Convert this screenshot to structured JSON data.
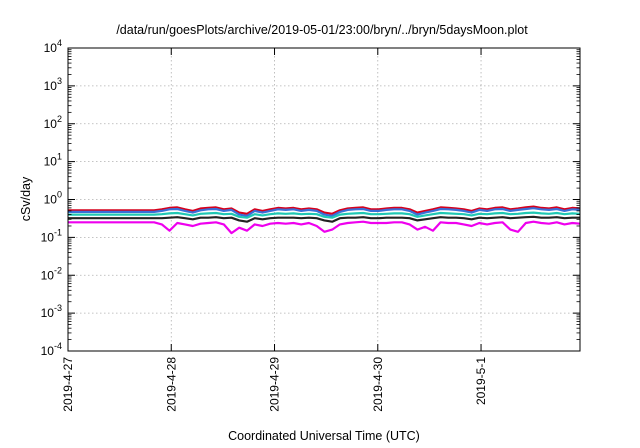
{
  "chart_data": {
    "type": "line",
    "title": "/data/run/goesPlots/archive/2019-05-01/23:00/bryn/../bryn/5daysMoon.plot",
    "xlabel": "Coordinated Universal Time (UTC)",
    "ylabel": "cSv/day",
    "yscale": "log",
    "ylim": [
      0.0001,
      10000
    ],
    "y_ticks": [
      {
        "exp": "-4",
        "value": 0.0001
      },
      {
        "exp": "-3",
        "value": 0.001
      },
      {
        "exp": "-2",
        "value": 0.01
      },
      {
        "exp": "-1",
        "value": 0.1
      },
      {
        "exp": "0",
        "value": 1
      },
      {
        "exp": "1",
        "value": 10
      },
      {
        "exp": "2",
        "value": 100
      },
      {
        "exp": "3",
        "value": 1000
      },
      {
        "exp": "4",
        "value": 10000
      }
    ],
    "y_tick_base": "10",
    "xlim": [
      "2019-04-27",
      "2019-05-01T23:00"
    ],
    "x_ticks": [
      "2019-4-27",
      "2019-4-28",
      "2019-4-29",
      "2019-4-30",
      "2019-5-1"
    ],
    "grid": true,
    "legend": "none",
    "series": [
      {
        "color": "#d6001c",
        "flat_value": 0.52,
        "values": [
          0.52,
          0.55,
          0.6,
          0.62,
          0.55,
          0.5,
          0.58,
          0.6,
          0.62,
          0.55,
          0.58,
          0.45,
          0.42,
          0.55,
          0.5,
          0.55,
          0.6,
          0.58,
          0.6,
          0.55,
          0.58,
          0.55,
          0.45,
          0.42,
          0.52,
          0.58,
          0.6,
          0.62,
          0.55,
          0.55,
          0.58,
          0.6,
          0.6,
          0.55,
          0.45,
          0.5,
          0.55,
          0.62,
          0.6,
          0.58,
          0.55,
          0.5,
          0.58,
          0.55,
          0.6,
          0.62,
          0.55,
          0.58,
          0.62,
          0.65,
          0.6,
          0.58,
          0.62,
          0.55,
          0.6,
          0.58
        ]
      },
      {
        "color": "#3a6fd8",
        "flat_value": 0.47,
        "values": [
          0.47,
          0.5,
          0.55,
          0.56,
          0.5,
          0.45,
          0.52,
          0.55,
          0.56,
          0.5,
          0.53,
          0.4,
          0.37,
          0.5,
          0.45,
          0.5,
          0.55,
          0.53,
          0.55,
          0.5,
          0.53,
          0.5,
          0.4,
          0.37,
          0.47,
          0.53,
          0.55,
          0.56,
          0.5,
          0.5,
          0.53,
          0.55,
          0.55,
          0.5,
          0.4,
          0.45,
          0.5,
          0.56,
          0.55,
          0.53,
          0.5,
          0.45,
          0.53,
          0.5,
          0.55,
          0.56,
          0.5,
          0.53,
          0.56,
          0.59,
          0.55,
          0.53,
          0.56,
          0.5,
          0.55,
          0.53
        ]
      },
      {
        "color": "#20c8b4",
        "flat_value": 0.4,
        "values": [
          0.4,
          0.41,
          0.43,
          0.44,
          0.41,
          0.38,
          0.42,
          0.43,
          0.44,
          0.41,
          0.42,
          0.35,
          0.33,
          0.41,
          0.38,
          0.41,
          0.43,
          0.42,
          0.43,
          0.41,
          0.42,
          0.41,
          0.35,
          0.33,
          0.4,
          0.42,
          0.43,
          0.44,
          0.41,
          0.41,
          0.42,
          0.43,
          0.43,
          0.41,
          0.35,
          0.38,
          0.41,
          0.44,
          0.43,
          0.42,
          0.41,
          0.38,
          0.42,
          0.41,
          0.43,
          0.44,
          0.41,
          0.42,
          0.44,
          0.45,
          0.43,
          0.42,
          0.44,
          0.41,
          0.43,
          0.42
        ]
      },
      {
        "color": "#222222",
        "flat_value": 0.32,
        "values": [
          0.32,
          0.32,
          0.33,
          0.34,
          0.32,
          0.3,
          0.33,
          0.33,
          0.34,
          0.32,
          0.33,
          0.28,
          0.26,
          0.32,
          0.3,
          0.32,
          0.33,
          0.33,
          0.33,
          0.32,
          0.33,
          0.32,
          0.28,
          0.26,
          0.32,
          0.33,
          0.33,
          0.34,
          0.32,
          0.32,
          0.33,
          0.33,
          0.33,
          0.32,
          0.28,
          0.3,
          0.32,
          0.34,
          0.33,
          0.33,
          0.32,
          0.3,
          0.33,
          0.32,
          0.33,
          0.34,
          0.32,
          0.33,
          0.34,
          0.35,
          0.33,
          0.33,
          0.34,
          0.32,
          0.33,
          0.33
        ]
      },
      {
        "color": "#ee00ee",
        "flat_value": 0.25,
        "values": [
          0.25,
          0.22,
          0.15,
          0.24,
          0.22,
          0.2,
          0.23,
          0.24,
          0.25,
          0.22,
          0.13,
          0.18,
          0.15,
          0.22,
          0.2,
          0.23,
          0.24,
          0.23,
          0.24,
          0.22,
          0.24,
          0.2,
          0.14,
          0.16,
          0.22,
          0.24,
          0.25,
          0.26,
          0.24,
          0.24,
          0.24,
          0.25,
          0.25,
          0.22,
          0.16,
          0.19,
          0.15,
          0.25,
          0.24,
          0.24,
          0.22,
          0.2,
          0.24,
          0.22,
          0.24,
          0.25,
          0.16,
          0.14,
          0.24,
          0.26,
          0.24,
          0.23,
          0.25,
          0.22,
          0.24,
          0.23
        ]
      }
    ],
    "series_x_start": "2019-04-27",
    "series_x_flat_end": "2019-04-27T20:00",
    "series_x_end": "2019-05-01T23:00"
  }
}
